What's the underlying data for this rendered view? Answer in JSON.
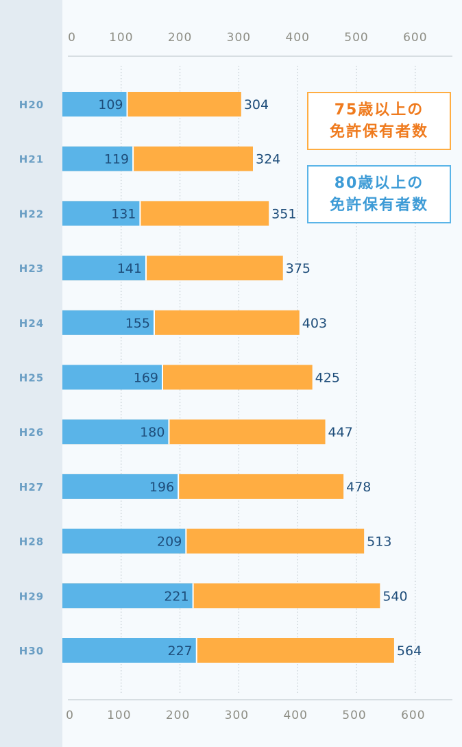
{
  "chart_data": {
    "type": "bar",
    "orientation": "horizontal",
    "layout": "overlapping",
    "categories": [
      "H20",
      "H21",
      "H22",
      "H23",
      "H24",
      "H25",
      "H26",
      "H27",
      "H28",
      "H29",
      "H30"
    ],
    "series": [
      {
        "name": "75歳以上の免許保有者数",
        "name_lines": [
          "75歳以上の",
          "免許保有者数"
        ],
        "color": "#ffad42",
        "text_color": "#ef7a1d",
        "values": [
          304,
          324,
          351,
          375,
          403,
          425,
          447,
          478,
          513,
          540,
          564
        ]
      },
      {
        "name": "80歳以上の免許保有者数",
        "name_lines": [
          "80歳以上の",
          "免許保有者数"
        ],
        "color": "#5ab4e8",
        "text_color": "#3d9bd6",
        "values": [
          109,
          119,
          131,
          141,
          155,
          169,
          180,
          196,
          209,
          221,
          227
        ]
      }
    ],
    "xlim": [
      0,
      600
    ],
    "xticks": [
      0,
      100,
      200,
      300,
      400,
      500,
      600
    ],
    "grid": true,
    "legend_position": "top-right",
    "title": "",
    "xlabel": "",
    "ylabel": "",
    "colors": {
      "background": "#f6fafd",
      "sidebar": "#e3ebf2",
      "category_label": "#6a9ec4",
      "tick_label": "#8d8d84",
      "value_label": "#1e4d7a",
      "grid": "#b8c2c8",
      "axis": "#b8c2c8"
    }
  }
}
